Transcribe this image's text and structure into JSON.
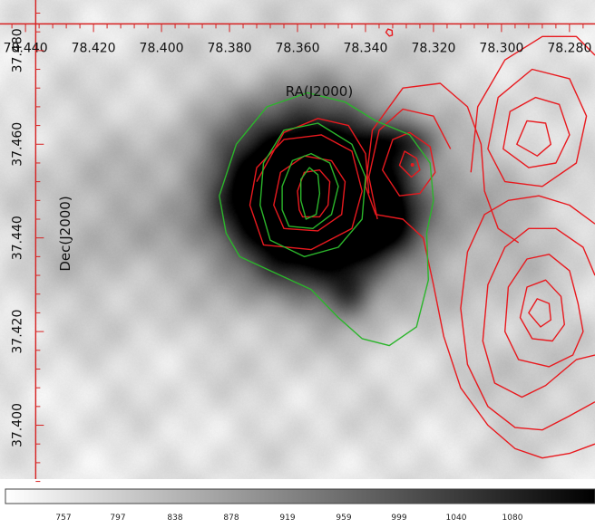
{
  "chart_data": {
    "type": "heatmap",
    "title": "",
    "xlabel": "RA(J2000)",
    "ylabel": "Dec(J2000)",
    "x_ticks": [
      "78.440",
      "78.420",
      "78.400",
      "78.380",
      "78.360",
      "78.340",
      "78.320",
      "78.300",
      "78.280"
    ],
    "x_tick_partial": "60",
    "y_ticks": [
      "37.480",
      "37.460",
      "37.440",
      "37.420",
      "37.400"
    ],
    "xlim": [
      78.4475,
      78.2725
    ],
    "ylim": [
      37.3885,
      37.4908
    ],
    "grid": false,
    "legend": "none",
    "colorbar": {
      "ticks": [
        "757",
        "797",
        "838",
        "878",
        "919",
        "959",
        "999",
        "1040",
        "1080"
      ],
      "colormap": "gray-inverted"
    },
    "image_sources": [
      {
        "ra": 78.356,
        "dec": 37.4492,
        "rx": 0.0195,
        "ry": 0.0125,
        "peak": 1.6
      },
      {
        "ra": 78.34,
        "dec": 37.4448,
        "rx": 0.0085,
        "ry": 0.0052,
        "peak": 0.55
      },
      {
        "ra": 78.329,
        "dec": 37.4605,
        "rx": 0.006,
        "ry": 0.003,
        "peak": 0.35
      },
      {
        "ra": 78.345,
        "dec": 37.4285,
        "rx": 0.005,
        "ry": 0.004,
        "peak": 0.35
      },
      {
        "ra": 78.42,
        "dec": 37.443,
        "rx": 0.015,
        "ry": 0.014,
        "peak": 0.18
      },
      {
        "ra": 78.3,
        "dec": 37.442,
        "rx": 0.016,
        "ry": 0.013,
        "peak": 0.14
      },
      {
        "ra": 78.29,
        "dec": 37.408,
        "rx": 0.013,
        "ry": 0.01,
        "peak": 0.12
      },
      {
        "ra": 78.355,
        "dec": 37.447,
        "rx": 0.055,
        "ry": 0.04,
        "peak": 0.1
      }
    ],
    "series": [
      {
        "color": "#e8191e",
        "contours": [
          [
            [
              78.3585,
              37.4445
            ],
            [
              78.3535,
              37.4445
            ],
            [
              78.351,
              37.447
            ],
            [
              78.3505,
              37.452
            ],
            [
              78.3535,
              37.4545
            ],
            [
              78.358,
              37.454
            ],
            [
              78.36,
              37.45
            ],
            [
              78.3595,
              37.446
            ]
          ],
          [
            [
              78.364,
              37.442
            ],
            [
              78.354,
              37.4415
            ],
            [
              78.347,
              37.445
            ],
            [
              78.346,
              37.452
            ],
            [
              78.35,
              37.4565
            ],
            [
              78.358,
              37.4575
            ],
            [
              78.365,
              37.454
            ],
            [
              78.367,
              37.447
            ]
          ],
          [
            [
              78.37,
              37.4385
            ],
            [
              78.356,
              37.4375
            ],
            [
              78.344,
              37.442
            ],
            [
              78.341,
              37.45
            ],
            [
              78.344,
              37.4585
            ],
            [
              78.353,
              37.462
            ],
            [
              78.364,
              37.461
            ],
            [
              78.372,
              37.455
            ],
            [
              78.374,
              37.447
            ]
          ],
          [
            [
              78.372,
              37.452
            ],
            [
              78.364,
              37.4625
            ],
            [
              78.354,
              37.4655
            ],
            [
              78.345,
              37.464
            ],
            [
              78.34,
              37.458
            ],
            [
              78.339,
              37.4495
            ]
          ],
          [
            [
              78.33,
              37.4555
            ],
            [
              78.3285,
              37.4585
            ],
            [
              78.325,
              37.457
            ],
            [
              78.324,
              37.4545
            ],
            [
              78.3265,
              37.453
            ]
          ],
          [
            [
              78.335,
              37.4545
            ],
            [
              78.332,
              37.461
            ],
            [
              78.327,
              37.4625
            ],
            [
              78.321,
              37.4595
            ],
            [
              78.3195,
              37.454
            ],
            [
              78.324,
              37.4495
            ],
            [
              78.33,
              37.449
            ]
          ],
          [
            [
              78.3365,
              37.444
            ],
            [
              78.339,
              37.453
            ],
            [
              78.336,
              37.463
            ],
            [
              78.329,
              37.4675
            ],
            [
              78.32,
              37.466
            ],
            [
              78.315,
              37.459
            ]
          ],
          [
            [
              78.2955,
              37.46
            ],
            [
              78.2925,
              37.465
            ],
            [
              78.287,
              37.4645
            ],
            [
              78.2855,
              37.46
            ],
            [
              78.2895,
              37.4575
            ]
          ],
          [
            [
              78.2995,
              37.459
            ],
            [
              78.2975,
              37.467
            ],
            [
              78.29,
              37.47
            ],
            [
              78.283,
              37.4685
            ],
            [
              78.28,
              37.462
            ],
            [
              78.284,
              37.456
            ],
            [
              78.292,
              37.455
            ]
          ],
          [
            [
              78.304,
              37.459
            ],
            [
              78.301,
              37.47
            ],
            [
              78.291,
              37.476
            ],
            [
              78.28,
              37.474
            ],
            [
              78.275,
              37.466
            ],
            [
              78.278,
              37.456
            ],
            [
              78.288,
              37.451
            ],
            [
              78.299,
              37.452
            ]
          ],
          [
            [
              78.309,
              37.454
            ],
            [
              78.307,
              37.468
            ],
            [
              78.299,
              37.478
            ],
            [
              78.288,
              37.483
            ],
            [
              78.278,
              37.483
            ],
            [
              78.2725,
              37.479
            ]
          ],
          [
            [
              78.292,
              37.424
            ],
            [
              78.2895,
              37.427
            ],
            [
              78.286,
              37.426
            ],
            [
              78.2855,
              37.4225
            ],
            [
              78.2885,
              37.421
            ]
          ],
          [
            [
              78.2945,
              37.423
            ],
            [
              78.2925,
              37.4295
            ],
            [
              78.287,
              37.431
            ],
            [
              78.2825,
              37.4275
            ],
            [
              78.2815,
              37.4215
            ],
            [
              78.285,
              37.418
            ],
            [
              78.291,
              37.4185
            ]
          ],
          [
            [
              78.299,
              37.42
            ],
            [
              78.298,
              37.4295
            ],
            [
              78.2925,
              37.4355
            ],
            [
              78.286,
              37.4365
            ],
            [
              78.28,
              37.433
            ],
            [
              78.2775,
              37.426
            ],
            [
              78.276,
              37.42
            ],
            [
              78.279,
              37.415
            ],
            [
              78.286,
              37.4125
            ],
            [
              78.295,
              37.414
            ]
          ],
          [
            [
              78.2725,
              37.415
            ],
            [
              78.278,
              37.414
            ],
            [
              78.287,
              37.4085
            ],
            [
              78.294,
              37.406
            ],
            [
              78.302,
              37.409
            ],
            [
              78.3055,
              37.418
            ],
            [
              78.304,
              37.43
            ],
            [
              78.299,
              37.438
            ],
            [
              78.292,
              37.442
            ],
            [
              78.284,
              37.442
            ],
            [
              78.276,
              37.438
            ],
            [
              78.2725,
              37.432
            ]
          ],
          [
            [
              78.2725,
              37.405
            ],
            [
              78.28,
              37.402
            ],
            [
              78.288,
              37.399
            ],
            [
              78.296,
              37.3995
            ],
            [
              78.304,
              37.404
            ],
            [
              78.31,
              37.413
            ],
            [
              78.312,
              37.425
            ],
            [
              78.31,
              37.437
            ],
            [
              78.305,
              37.445
            ],
            [
              78.298,
              37.448
            ],
            [
              78.289,
              37.449
            ],
            [
              78.28,
              37.447
            ],
            [
              78.2725,
              37.443
            ]
          ],
          [
            [
              78.2725,
              37.396
            ],
            [
              78.28,
              37.394
            ],
            [
              78.288,
              37.393
            ],
            [
              78.296,
              37.395
            ],
            [
              78.304,
              37.4
            ],
            [
              78.312,
              37.408
            ],
            [
              78.317,
              37.419
            ],
            [
              78.32,
              37.43
            ],
            [
              78.323,
              37.44
            ],
            [
              78.329,
              37.444
            ],
            [
              78.337,
              37.445
            ],
            [
              78.34,
              37.451
            ],
            [
              78.338,
              37.463
            ],
            [
              78.329,
              37.472
            ],
            [
              78.318,
              37.473
            ],
            [
              78.31,
              37.468
            ],
            [
              78.306,
              37.46
            ],
            [
              78.305,
              37.45
            ],
            [
              78.301,
              37.442
            ],
            [
              78.295,
              37.439
            ]
          ],
          [
            [
              78.334,
              37.4839
            ],
            [
              78.3334,
              37.4846
            ],
            [
              78.3322,
              37.4843
            ],
            [
              78.3321,
              37.4833
            ],
            [
              78.333,
              37.4831
            ]
          ]
        ]
      },
      {
        "color": "#2bb52b",
        "contours": [
          [
            [
              78.3575,
              37.444
            ],
            [
              78.3545,
              37.445
            ],
            [
              78.3535,
              37.4495
            ],
            [
              78.354,
              37.4535
            ],
            [
              78.3565,
              37.455
            ],
            [
              78.359,
              37.4525
            ],
            [
              78.359,
              37.448
            ]
          ],
          [
            [
              78.3625,
              37.4425
            ],
            [
              78.3555,
              37.442
            ],
            [
              78.35,
              37.445
            ],
            [
              78.348,
              37.451
            ],
            [
              78.3505,
              37.456
            ],
            [
              78.356,
              37.458
            ],
            [
              78.3615,
              37.4565
            ],
            [
              78.3645,
              37.451
            ],
            [
              78.3645,
              37.446
            ]
          ],
          [
            [
              78.368,
              37.4395
            ],
            [
              78.358,
              37.436
            ],
            [
              78.348,
              37.438
            ],
            [
              78.341,
              37.444
            ],
            [
              78.34,
              37.453
            ],
            [
              78.344,
              37.46
            ],
            [
              78.354,
              37.4645
            ],
            [
              78.364,
              37.463
            ],
            [
              78.37,
              37.456
            ],
            [
              78.371,
              37.447
            ]
          ],
          [
            [
              78.377,
              37.436
            ],
            [
              78.365,
              37.432
            ],
            [
              78.356,
              37.429
            ],
            [
              78.348,
              37.423
            ],
            [
              78.341,
              37.4185
            ],
            [
              78.333,
              37.417
            ],
            [
              78.325,
              37.421
            ],
            [
              78.3215,
              37.431
            ],
            [
              78.322,
              37.441
            ],
            [
              78.32,
              37.448
            ],
            [
              78.321,
              37.456
            ],
            [
              78.327,
              37.462
            ],
            [
              78.337,
              37.465
            ],
            [
              78.346,
              37.469
            ],
            [
              78.357,
              37.471
            ],
            [
              78.369,
              37.468
            ],
            [
              78.378,
              37.46
            ],
            [
              78.383,
              37.449
            ],
            [
              78.381,
              37.441
            ]
          ]
        ]
      }
    ]
  }
}
